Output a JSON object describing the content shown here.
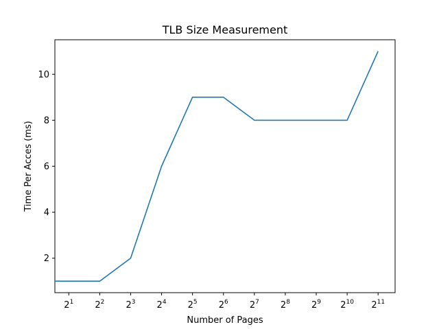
{
  "chart_data": {
    "type": "line",
    "title": "TLB Size Measurement",
    "xlabel": "Number of Pages",
    "ylabel": "Time Per Acces (ms)",
    "x_scale": "log2",
    "xlim": [
      0.55,
      11.55
    ],
    "ylim": [
      0.5,
      11.5
    ],
    "x_ticks": [
      {
        "value": 1,
        "base": "2",
        "exp": "1"
      },
      {
        "value": 2,
        "base": "2",
        "exp": "2"
      },
      {
        "value": 3,
        "base": "2",
        "exp": "3"
      },
      {
        "value": 4,
        "base": "2",
        "exp": "4"
      },
      {
        "value": 5,
        "base": "2",
        "exp": "5"
      },
      {
        "value": 6,
        "base": "2",
        "exp": "6"
      },
      {
        "value": 7,
        "base": "2",
        "exp": "7"
      },
      {
        "value": 8,
        "base": "2",
        "exp": "8"
      },
      {
        "value": 9,
        "base": "2",
        "exp": "9"
      },
      {
        "value": 10,
        "base": "2",
        "exp": "10"
      },
      {
        "value": 11,
        "base": "2",
        "exp": "11"
      }
    ],
    "y_ticks": [
      2,
      4,
      6,
      8,
      10
    ],
    "series": [
      {
        "color": "#1f77b4",
        "x": [
          0.55,
          1,
          2,
          3,
          4,
          5,
          6,
          7,
          8,
          9,
          10,
          11
        ],
        "y": [
          1,
          1,
          1,
          2,
          6,
          9,
          9,
          8,
          8,
          8,
          8,
          11
        ]
      }
    ],
    "grid": false,
    "legend": "none"
  }
}
